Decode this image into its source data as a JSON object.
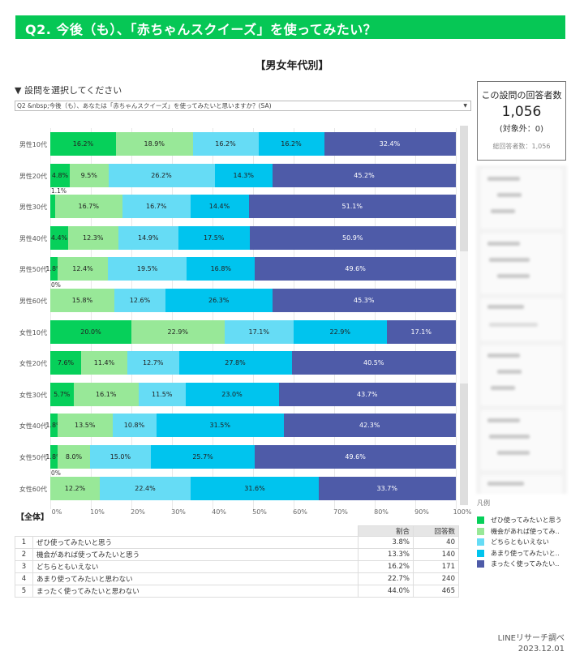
{
  "header": {
    "title": "Q2. 今後（も）、「赤ちゃんスクイーズ」を使ってみたい？"
  },
  "section": {
    "title": "【男女年代別】"
  },
  "selector": {
    "label": "▼ 設問を選択してください",
    "value": "Q2 &nbsp;今後（も）、あなたは「赤ちゃんスクイーズ」を使ってみたいと思いますか？(SA)",
    "arrow": "▼"
  },
  "respondents": {
    "label": "この設問の回答者数",
    "count": "1,056",
    "excluded": "(対象外：0)",
    "total": "総回答者数：1,056"
  },
  "colors": {
    "brand": "#06c755",
    "series": [
      "#06d05a",
      "#98e898",
      "#66dcf5",
      "#00c4ee",
      "#4e5ba8"
    ]
  },
  "chart_data": {
    "type": "bar",
    "orientation": "horizontal-stacked-100",
    "title": "【男女年代別】",
    "categories": [
      "男性10代",
      "男性20代",
      "男性30代",
      "男性40代",
      "男性50代",
      "男性60代",
      "女性10代",
      "女性20代",
      "女性30代",
      "女性40代",
      "女性50代",
      "女性60代"
    ],
    "series": [
      {
        "name": "ぜひ使ってみたいと思う",
        "values": [
          16.2,
          4.8,
          1.1,
          4.4,
          1.8,
          0.0,
          20.0,
          7.6,
          5.7,
          1.8,
          1.8,
          0.0
        ]
      },
      {
        "name": "機会があれば使ってみたいと思う",
        "values": [
          18.9,
          9.5,
          16.7,
          12.3,
          12.4,
          15.8,
          22.9,
          11.4,
          16.1,
          13.5,
          8.0,
          12.2
        ]
      },
      {
        "name": "どちらともいえない",
        "values": [
          16.2,
          26.2,
          16.7,
          14.9,
          19.5,
          12.6,
          17.1,
          12.7,
          11.5,
          10.8,
          15.0,
          22.4
        ]
      },
      {
        "name": "あまり使ってみたいと思わない",
        "values": [
          16.2,
          14.3,
          14.4,
          17.5,
          16.8,
          26.3,
          22.9,
          27.8,
          23.0,
          31.5,
          25.7,
          31.6
        ]
      },
      {
        "name": "まったく使ってみたいと思わない",
        "values": [
          32.4,
          45.2,
          51.1,
          50.9,
          49.6,
          45.3,
          17.1,
          40.5,
          43.7,
          42.3,
          49.6,
          33.7
        ]
      }
    ],
    "xlabel": "",
    "ylabel": "",
    "xlim": [
      0,
      100
    ],
    "xticks": [
      "0%",
      "10%",
      "20%",
      "30%",
      "40%",
      "50%",
      "60%",
      "70%",
      "80%",
      "90%",
      "100%"
    ],
    "grid": true,
    "legend_position": "right"
  },
  "chart_labels": {
    "rows": [
      {
        "label": "男性10代",
        "segs": [
          "16.2%",
          "18.9%",
          "16.2%",
          "16.2%",
          "32.4%"
        ],
        "above": ""
      },
      {
        "label": "男性20代",
        "segs": [
          "4.8%",
          "9.5%",
          "26.2%",
          "14.3%",
          "45.2%"
        ],
        "above": ""
      },
      {
        "label": "男性30代",
        "segs": [
          "",
          "16.7%",
          "16.7%",
          "14.4%",
          "51.1%"
        ],
        "above": "1.1%"
      },
      {
        "label": "男性40代",
        "segs": [
          "4.4%",
          "12.3%",
          "14.9%",
          "17.5%",
          "50.9%"
        ],
        "above": ""
      },
      {
        "label": "男性50代",
        "segs": [
          "1.8%",
          "12.4%",
          "19.5%",
          "16.8%",
          "49.6%"
        ],
        "above": ""
      },
      {
        "label": "男性60代",
        "segs": [
          "",
          "15.8%",
          "12.6%",
          "26.3%",
          "45.3%"
        ],
        "above": "0%"
      },
      {
        "label": "女性10代",
        "segs": [
          "20.0%",
          "22.9%",
          "17.1%",
          "22.9%",
          "17.1%"
        ],
        "above": ""
      },
      {
        "label": "女性20代",
        "segs": [
          "7.6%",
          "11.4%",
          "12.7%",
          "27.8%",
          "40.5%"
        ],
        "above": ""
      },
      {
        "label": "女性30代",
        "segs": [
          "5.7%",
          "16.1%",
          "11.5%",
          "23.0%",
          "43.7%"
        ],
        "above": ""
      },
      {
        "label": "女性40代",
        "segs": [
          "1.8%",
          "13.5%",
          "10.8%",
          "31.5%",
          "42.3%"
        ],
        "above": ""
      },
      {
        "label": "女性50代",
        "segs": [
          "1.8%",
          "8.0%",
          "15.0%",
          "25.7%",
          "49.6%"
        ],
        "above": ""
      },
      {
        "label": "女性60代",
        "segs": [
          "",
          "12.2%",
          "22.4%",
          "31.6%",
          "33.7%"
        ],
        "above": "0%"
      }
    ]
  },
  "legend": {
    "title": "凡例",
    "items": [
      "ぜひ使ってみたいと思う",
      "機会があれば使ってみ..",
      "どちらともいえない",
      "あまり使ってみたいと..",
      "まったく使ってみたい.."
    ]
  },
  "overall": {
    "label": "【全体】",
    "columns": [
      "割合",
      "回答数"
    ],
    "rows": [
      {
        "idx": "1",
        "label": "ぜひ使ってみたいと思う",
        "pct": "3.8%",
        "count": "40"
      },
      {
        "idx": "2",
        "label": "機会があれば使ってみたいと思う",
        "pct": "13.3%",
        "count": "140"
      },
      {
        "idx": "3",
        "label": "どちらともいえない",
        "pct": "16.2%",
        "count": "171"
      },
      {
        "idx": "4",
        "label": "あまり使ってみたいと思わない",
        "pct": "22.7%",
        "count": "240"
      },
      {
        "idx": "5",
        "label": "まったく使ってみたいと思わない",
        "pct": "44.0%",
        "count": "465"
      }
    ]
  },
  "footer": {
    "source": "LINEリサーチ調べ",
    "date": "2023.12.01"
  }
}
